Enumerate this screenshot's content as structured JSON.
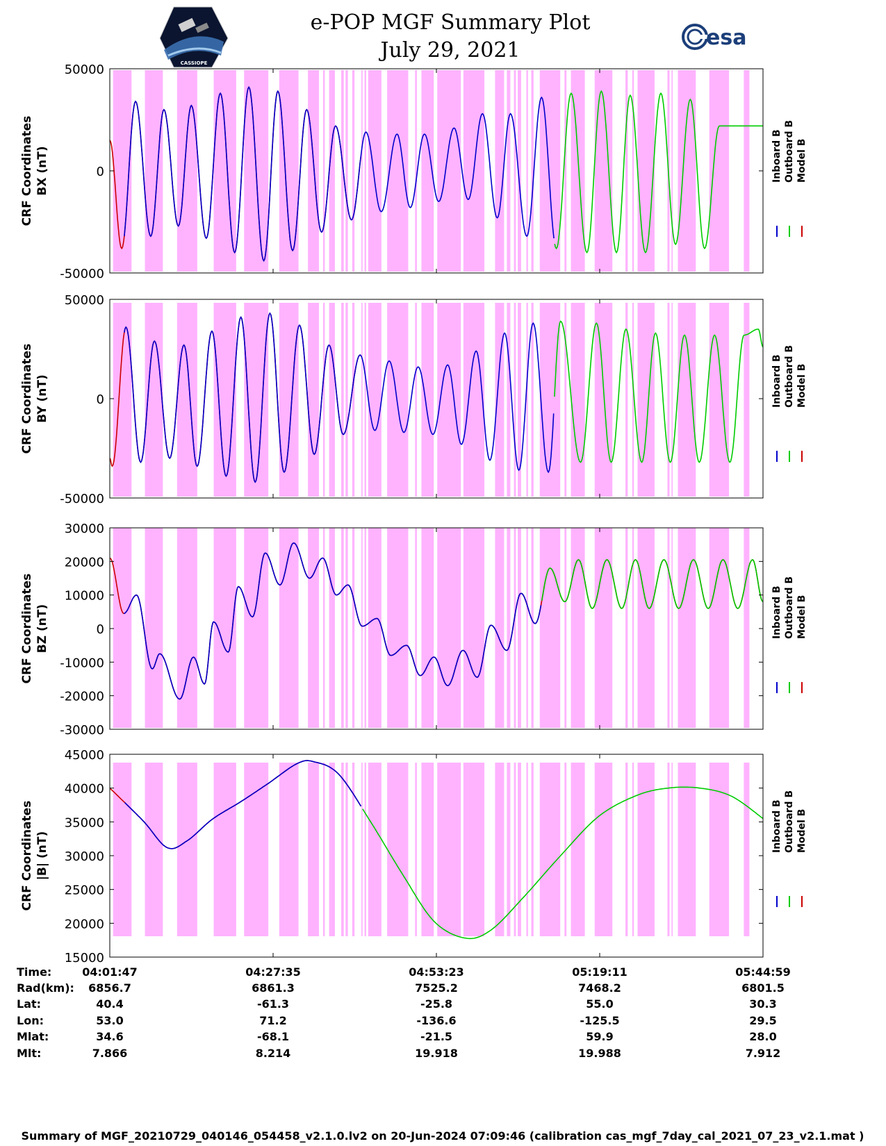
{
  "header": {
    "title": "e-POP MGF Summary Plot",
    "date": "July 29, 2021",
    "logo_left": "CASSIOPE",
    "logo_right": "esa"
  },
  "colors": {
    "inboard": "#0000cc",
    "outboard": "#00cc00",
    "model": "#cc0000",
    "shading": "#ffb3ff"
  },
  "legend": [
    "Inboard B",
    "Outboard B",
    "Model B"
  ],
  "shading_intervals_time": [
    [
      "04:02:18",
      "04:05:13"
    ],
    [
      "04:07:20",
      "04:10:10"
    ],
    [
      "04:12:25",
      "04:15:36"
    ],
    [
      "04:18:12",
      "04:21:45"
    ],
    [
      "04:23:00",
      "04:26:50"
    ],
    [
      "04:28:33",
      "04:31:36"
    ],
    [
      "04:33:05",
      "04:34:50"
    ],
    [
      "04:35:29",
      "04:35:45"
    ],
    [
      "04:36:26",
      "04:37:21"
    ],
    [
      "04:38:21",
      "04:38:45"
    ],
    [
      "04:39:02",
      "04:39:24"
    ],
    [
      "04:40:05",
      "04:40:27"
    ],
    [
      "04:41:32",
      "04:41:43"
    ],
    [
      "04:42:02",
      "04:42:17"
    ],
    [
      "04:42:36",
      "04:44:42"
    ],
    [
      "04:45:36",
      "04:48:56"
    ],
    [
      "04:50:01",
      "04:50:18"
    ],
    [
      "04:51:01",
      "04:52:58"
    ],
    [
      "04:53:31",
      "04:57:15"
    ],
    [
      "04:57:39",
      "05:00:58"
    ],
    [
      "05:02:39",
      "05:04:05"
    ],
    [
      "05:04:31",
      "05:05:04"
    ],
    [
      "05:05:38",
      "05:05:57"
    ],
    [
      "05:06:14",
      "05:06:46"
    ],
    [
      "05:07:36",
      "05:07:51"
    ],
    [
      "05:08:22",
      "05:08:44"
    ],
    [
      "05:09:43",
      "05:12:57"
    ],
    [
      "05:13:37",
      "05:13:56"
    ],
    [
      "05:14:38",
      "05:16:50"
    ],
    [
      "05:18:23",
      "05:21:11"
    ],
    [
      "05:23:15",
      "05:23:37"
    ],
    [
      "05:24:20",
      "05:24:35"
    ],
    [
      "05:25:10",
      "05:27:51"
    ],
    [
      "05:29:53",
      "05:30:13"
    ],
    [
      "05:30:32",
      "05:30:43"
    ],
    [
      "05:31:32",
      "05:34:22"
    ],
    [
      "05:36:30",
      "05:39:37"
    ],
    [
      "05:41:57",
      "05:42:50"
    ]
  ],
  "chart_data": [
    {
      "type": "line",
      "panel": "BX",
      "ylabel": [
        "CRF Coordinates",
        "BX (nT)"
      ],
      "ylim": [
        -50000,
        50000
      ],
      "yticks": [
        "50000",
        "0",
        "-50000"
      ],
      "ytick_values": [
        50000,
        0,
        -50000
      ],
      "xlim_time": [
        "04:01:47",
        "05:44:59"
      ],
      "grid": false,
      "series_segments": [
        {
          "name": "Model B",
          "color": "model",
          "time_range": [
            "04:01:47",
            "04:41:33"
          ]
        },
        {
          "name": "Inboard B",
          "color": "inboard",
          "time_range": [
            "04:04:00",
            "05:12:00"
          ]
        },
        {
          "name": "Outboard B",
          "color": "outboard",
          "time_range": [
            "05:12:00",
            "05:44:59"
          ]
        }
      ],
      "extrema_time": [
        "04:01:47",
        "04:03:40",
        "04:05:51",
        "04:08:15",
        "04:10:20",
        "04:12:37",
        "04:14:40",
        "04:17:02",
        "04:19:15",
        "04:21:31",
        "04:23:45",
        "04:26:07",
        "04:28:20",
        "04:30:40",
        "04:32:53",
        "04:35:15",
        "04:37:27",
        "04:39:58",
        "04:42:15",
        "04:44:40",
        "04:47:10",
        "04:49:15",
        "04:51:30",
        "04:53:45",
        "04:56:10",
        "04:58:25",
        "05:00:40",
        "05:03:00",
        "05:05:05",
        "05:07:40",
        "05:10:00",
        "05:12:20",
        "05:14:40",
        "05:17:10",
        "05:19:26",
        "05:21:50",
        "05:24:00",
        "05:26:25",
        "05:28:51",
        "05:31:10",
        "05:33:30",
        "05:35:45",
        "05:38:05",
        "05:40:30",
        "05:42:45",
        "05:44:59"
      ],
      "extrema_values": [
        15000,
        -38000,
        34000,
        -32000,
        30000,
        -27000,
        32000,
        -33000,
        38000,
        -40000,
        41000,
        -44000,
        39000,
        -39000,
        30000,
        -30000,
        22000,
        -24000,
        19000,
        -20000,
        18000,
        -18000,
        18000,
        -15000,
        21000,
        -14000,
        28000,
        -23000,
        28000,
        -32000,
        36000,
        -38000,
        38000,
        -40000,
        39000,
        -40000,
        37000,
        -40000,
        38000,
        -36000,
        35000,
        -38000,
        22000,
        22000,
        22000,
        22000
      ]
    },
    {
      "type": "line",
      "panel": "BY",
      "ylabel": [
        "CRF Coordinates",
        "BY (nT)"
      ],
      "ylim": [
        -50000,
        50000
      ],
      "yticks": [
        "50000",
        "0",
        "-50000"
      ],
      "ytick_values": [
        50000,
        0,
        -50000
      ],
      "xlim_time": [
        "04:01:47",
        "05:44:59"
      ],
      "grid": false,
      "series_segments": [
        {
          "name": "Model B",
          "color": "model",
          "time_range": [
            "04:01:47",
            "04:41:33"
          ]
        },
        {
          "name": "Inboard B",
          "color": "inboard",
          "time_range": [
            "04:04:00",
            "05:12:00"
          ]
        },
        {
          "name": "Outboard B",
          "color": "outboard",
          "time_range": [
            "05:12:00",
            "05:44:59"
          ]
        }
      ],
      "extrema_time": [
        "04:01:47",
        "04:02:10",
        "04:04:20",
        "04:06:40",
        "04:08:50",
        "04:11:15",
        "04:13:30",
        "04:15:35",
        "04:17:55",
        "04:20:10",
        "04:22:30",
        "04:24:45",
        "04:27:05",
        "04:29:20",
        "04:31:45",
        "04:34:05",
        "04:36:25",
        "04:38:40",
        "04:41:20",
        "04:43:40",
        "04:45:55",
        "04:48:15",
        "04:50:30",
        "04:52:50",
        "04:55:10",
        "04:57:20",
        "04:59:40",
        "05:01:50",
        "05:04:10",
        "05:06:25",
        "05:08:40",
        "05:11:05",
        "05:13:00",
        "05:16:10",
        "05:18:40",
        "05:21:00",
        "05:23:20",
        "05:25:50",
        "05:28:00",
        "05:30:20",
        "05:32:35",
        "05:34:55",
        "05:37:20",
        "05:39:45",
        "05:42:00",
        "05:44:15",
        "05:44:59"
      ],
      "extrema_values": [
        -30000,
        -34000,
        36000,
        -32000,
        29000,
        -30000,
        27000,
        -34000,
        34000,
        -39000,
        41000,
        -42000,
        43000,
        -37000,
        37000,
        -28000,
        27000,
        -18000,
        22000,
        -16000,
        19000,
        -17000,
        16000,
        -18000,
        17000,
        -23000,
        24000,
        -31000,
        33000,
        -36000,
        38000,
        -37000,
        39000,
        -32000,
        38000,
        -32000,
        35000,
        -32000,
        33000,
        -32000,
        32000,
        -32000,
        32000,
        -32000,
        32000,
        35000,
        26000
      ]
    },
    {
      "type": "line",
      "panel": "BZ",
      "ylabel": [
        "CRF Coordinates",
        "BZ (nT)"
      ],
      "ylim": [
        -30000,
        30000
      ],
      "yticks": [
        "30000",
        "20000",
        "10000",
        "0",
        "-10000",
        "-20000",
        "-30000"
      ],
      "ytick_values": [
        30000,
        20000,
        10000,
        0,
        -10000,
        -20000,
        -30000
      ],
      "xlim_time": [
        "04:01:47",
        "05:44:59"
      ],
      "grid": false,
      "series_segments": [
        {
          "name": "Model B",
          "color": "model",
          "time_range": [
            "04:01:47",
            "05:44:59"
          ]
        },
        {
          "name": "Inboard B",
          "color": "inboard",
          "time_range": [
            "04:04:00",
            "05:10:00"
          ]
        },
        {
          "name": "Outboard B",
          "color": "outboard",
          "time_range": [
            "05:10:00",
            "05:44:59"
          ]
        }
      ],
      "extrema_time": [
        "04:01:47",
        "04:04:00",
        "04:06:00",
        "04:08:30",
        "04:09:40",
        "04:12:50",
        "04:15:00",
        "04:16:45",
        "04:18:10",
        "04:20:30",
        "04:22:05",
        "04:24:20",
        "04:26:20",
        "04:28:40",
        "04:30:50",
        "04:33:20",
        "04:35:25",
        "04:37:35",
        "04:39:25",
        "04:41:40",
        "04:44:00",
        "04:46:10",
        "04:48:40",
        "04:50:50",
        "04:53:00",
        "04:55:10",
        "04:57:35",
        "04:59:50",
        "05:02:00",
        "05:04:30",
        "05:06:45",
        "05:09:00",
        "05:11:20",
        "05:13:40",
        "05:15:50",
        "05:18:00",
        "05:20:20",
        "05:22:40",
        "05:24:50",
        "05:27:00",
        "05:29:20",
        "05:31:40",
        "05:34:00",
        "05:36:20",
        "05:38:40",
        "05:41:00",
        "05:43:20",
        "05:44:59"
      ],
      "extrema_values": [
        21000,
        4500,
        10000,
        -12000,
        -7500,
        -21000,
        -8500,
        -16500,
        2000,
        -7000,
        12500,
        3500,
        22500,
        13000,
        25500,
        15000,
        21000,
        10000,
        13000,
        700,
        3000,
        -8000,
        -5000,
        -14000,
        -8500,
        -17000,
        -6500,
        -14500,
        1000,
        -6500,
        10500,
        1500,
        18000,
        8000,
        20500,
        6000,
        20500,
        6000,
        20500,
        6000,
        20500,
        6000,
        20500,
        6000,
        20500,
        6000,
        20500,
        8000
      ]
    },
    {
      "type": "line",
      "panel": "|B|",
      "ylabel": [
        "CRF Coordinates",
        "|B| (nT)"
      ],
      "ylim": [
        15000,
        45000
      ],
      "yticks": [
        "45000",
        "40000",
        "35000",
        "30000",
        "25000",
        "20000",
        "15000"
      ],
      "ytick_values": [
        45000,
        40000,
        35000,
        30000,
        25000,
        20000,
        15000
      ],
      "xlim_time": [
        "04:01:47",
        "05:44:59"
      ],
      "grid": false,
      "series_segments": [
        {
          "name": "Model B",
          "color": "model",
          "time_range": [
            "04:01:47",
            "04:41:33"
          ]
        },
        {
          "name": "Inboard B",
          "color": "inboard",
          "time_range": [
            "04:04:00",
            "04:41:33"
          ]
        },
        {
          "name": "Outboard B",
          "color": "outboard",
          "time_range": [
            "04:41:33",
            "05:44:59"
          ]
        }
      ],
      "key_points_time": [
        "04:01:47",
        "04:07:00",
        "04:10:50",
        "04:14:00",
        "04:18:00",
        "04:22:30",
        "04:26:50",
        "04:31:20",
        "04:34:00",
        "04:38:00",
        "04:43:00",
        "04:48:00",
        "04:53:00",
        "04:58:00",
        "05:02:00",
        "05:07:00",
        "05:13:00",
        "05:19:00",
        "05:25:00",
        "05:30:00",
        "05:35:00",
        "05:40:00",
        "05:44:59"
      ],
      "key_points_values": [
        40000,
        35200,
        31200,
        32200,
        35400,
        38000,
        40700,
        43600,
        43900,
        42000,
        35000,
        27300,
        20300,
        17800,
        19000,
        23700,
        30000,
        35800,
        38900,
        40000,
        40000,
        38800,
        35500
      ]
    }
  ],
  "table": {
    "row_labels": [
      "Time:",
      "Rad(km):",
      "Lat:",
      "Lon:",
      "Mlat:",
      "Mlt:"
    ],
    "columns": [
      [
        "04:01:47",
        "6856.7",
        "40.4",
        "53.0",
        "34.6",
        "7.866"
      ],
      [
        "04:27:35",
        "6861.3",
        "-61.3",
        "71.2",
        "-68.1",
        "8.214"
      ],
      [
        "04:53:23",
        "7525.2",
        "-25.8",
        "-136.6",
        "-21.5",
        "19.918"
      ],
      [
        "05:19:11",
        "7468.2",
        "55.0",
        "-125.5",
        "59.9",
        "19.988"
      ],
      [
        "05:44:59",
        "6801.5",
        "30.3",
        "29.5",
        "28.0",
        "7.912"
      ]
    ]
  },
  "footer": "Summary of MGF_20210729_040146_054458_v2.1.0.lv2 on 20-Jun-2024 07:09:46 (calibration cas_mgf_7day_cal_2021_07_23_v2.1.mat )"
}
